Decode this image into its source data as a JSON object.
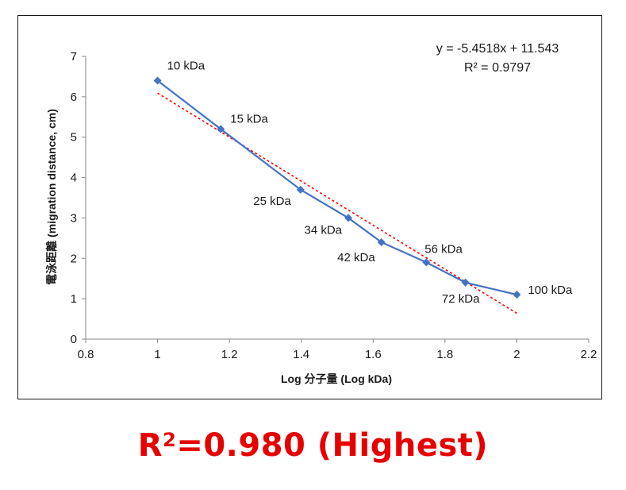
{
  "chart_data": {
    "type": "scatter",
    "xlabel": "Log 分子量 (Log kDa)",
    "ylabel": "電泳距離 (migration distance, cm)",
    "xlim": [
      0.8,
      2.2
    ],
    "ylim": [
      0,
      7
    ],
    "xticks": [
      "0.8",
      "1",
      "1.2",
      "1.4",
      "1.6",
      "1.8",
      "2",
      "2.2"
    ],
    "yticks": [
      "0",
      "1",
      "2",
      "3",
      "4",
      "5",
      "6",
      "7"
    ],
    "grid": false,
    "series": [
      {
        "x": [
          1.0,
          1.176,
          1.398,
          1.531,
          1.623,
          1.748,
          1.857,
          2.0
        ],
        "y": [
          6.4,
          5.2,
          3.7,
          3.0,
          2.4,
          1.9,
          1.4,
          1.1
        ],
        "labels": [
          "10 kDa",
          "15 kDa",
          "25 kDa",
          "34 kDa",
          "42 kDa",
          "56 kDa",
          "72 kDa",
          "100 kDa"
        ],
        "color": "#4472c4"
      }
    ],
    "trendline": {
      "type": "linear",
      "slope": -5.4518,
      "intercept": 11.543,
      "x_range": [
        1.0,
        2.0
      ],
      "color": "#ff0000",
      "style": "dotted"
    },
    "annotations": {
      "equation": "y = -5.4518x + 11.543",
      "r_squared": "R² = 0.9797"
    }
  },
  "caption": {
    "prefix": "R",
    "superscript": "2",
    "suffix": "=0.980 (Highest)"
  },
  "colors": {
    "series": "#4472c4",
    "trendline": "#ff0000",
    "caption": "#e60000"
  }
}
